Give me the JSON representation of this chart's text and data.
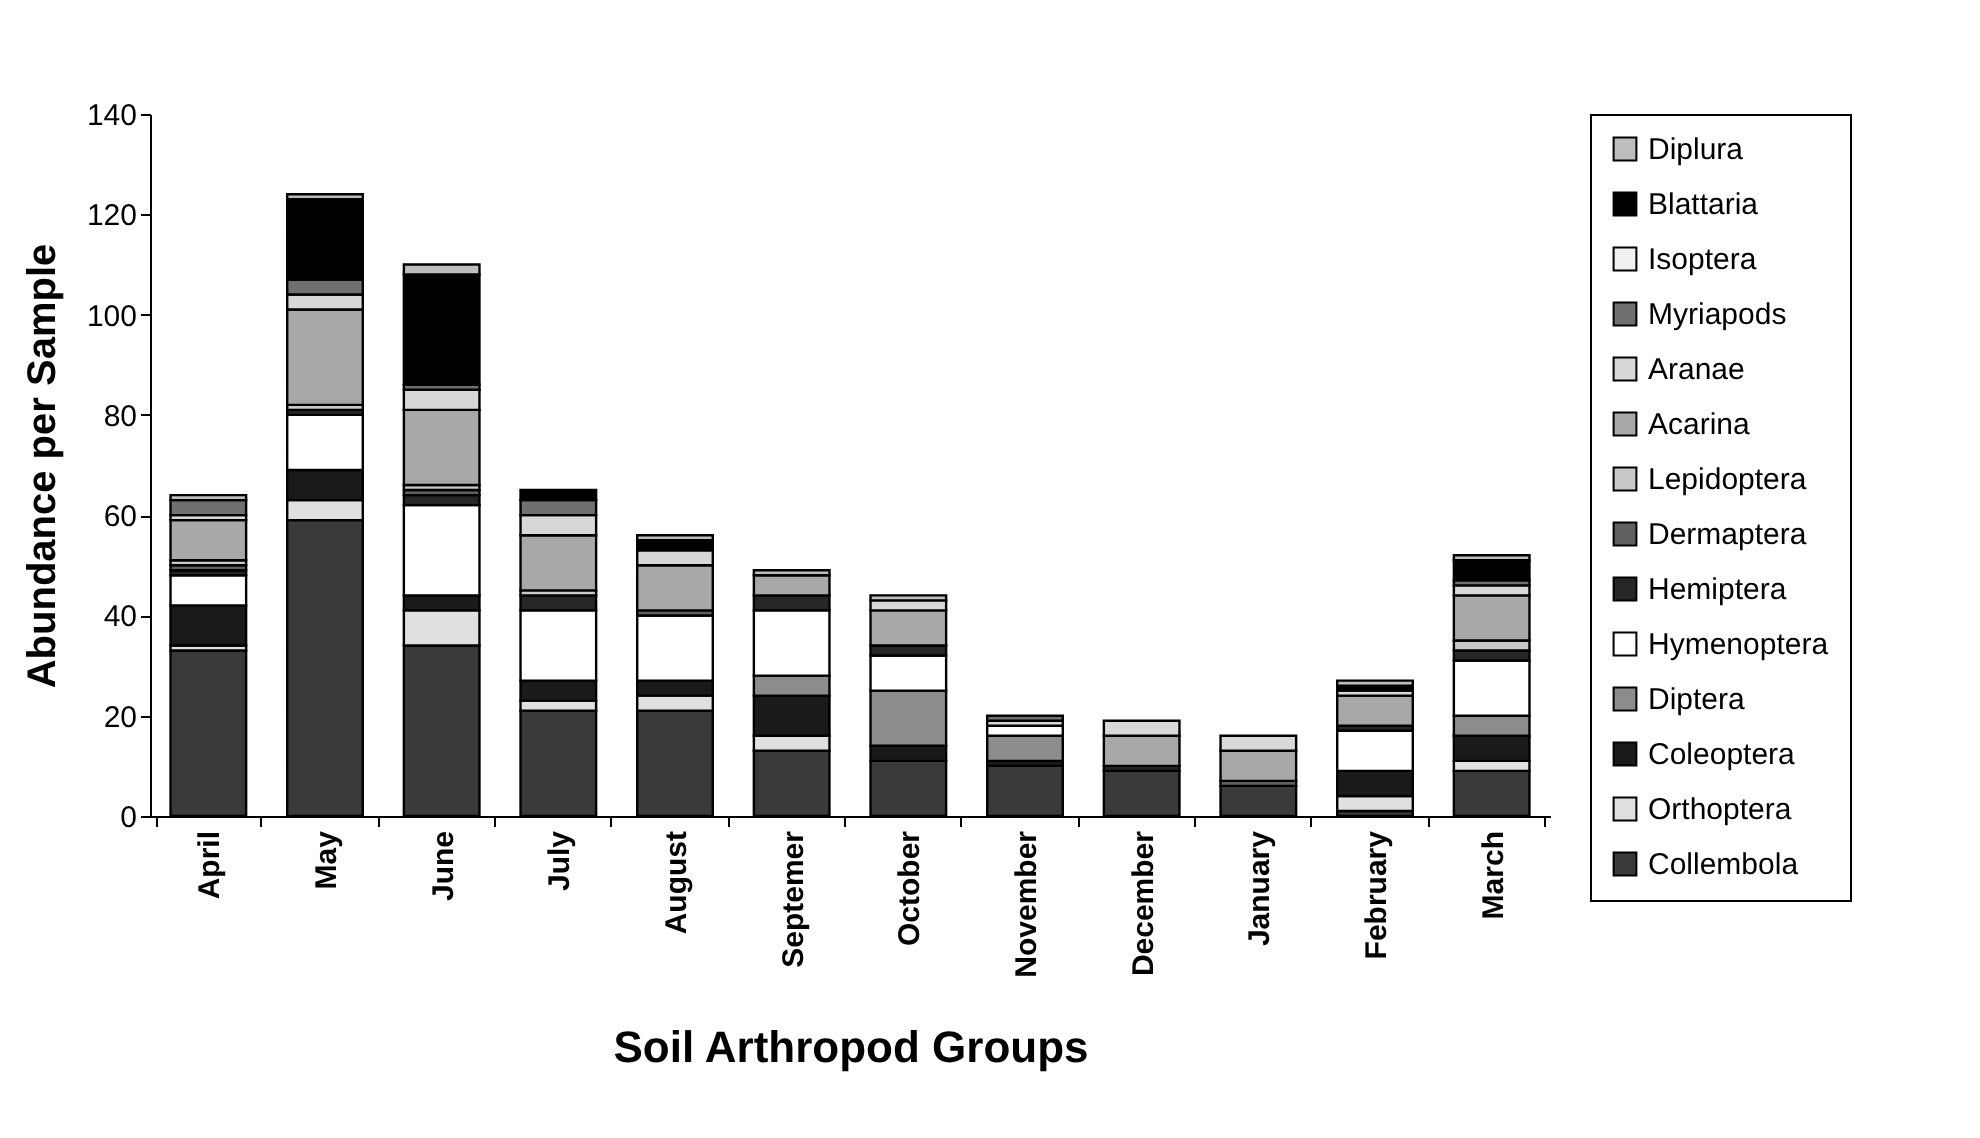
{
  "chart_data": {
    "type": "bar",
    "stacked": true,
    "xlabel": "Soil Arthropod Groups",
    "ylabel": "Abundance per Sample",
    "categories": [
      "April",
      "May",
      "June",
      "July",
      "August",
      "Septemer",
      "October",
      "November",
      "December",
      "January",
      "February",
      "March"
    ],
    "ylim": [
      0,
      140
    ],
    "yticks": [
      0,
      20,
      40,
      60,
      80,
      100,
      120,
      140
    ],
    "legend": "right",
    "grid": false,
    "series": [
      {
        "name": "Collembola",
        "color": "#3a3a3a",
        "values": [
          33,
          59,
          34,
          21,
          21,
          13,
          11,
          10,
          9,
          6,
          1,
          9
        ]
      },
      {
        "name": "Orthoptera",
        "color": "#e0e0e0",
        "values": [
          1,
          4,
          7,
          2,
          3,
          3,
          0,
          0,
          0,
          0,
          3,
          2
        ]
      },
      {
        "name": "Coleoptera",
        "color": "#1a1a1a",
        "values": [
          8,
          6,
          3,
          4,
          3,
          8,
          3,
          1,
          0,
          0,
          5,
          5
        ]
      },
      {
        "name": "Diptera",
        "color": "#8c8c8c",
        "values": [
          0,
          0,
          0,
          0,
          0,
          4,
          11,
          5,
          0,
          0,
          0,
          4
        ]
      },
      {
        "name": "Hymenoptera",
        "color": "#ffffff",
        "values": [
          6,
          11,
          18,
          14,
          13,
          13,
          7,
          2,
          0,
          0,
          8,
          11
        ]
      },
      {
        "name": "Hemiptera",
        "color": "#262626",
        "values": [
          1,
          1,
          2,
          3,
          0,
          3,
          2,
          0,
          1,
          0,
          1,
          2
        ]
      },
      {
        "name": "Dermaptera",
        "color": "#606060",
        "values": [
          1,
          0,
          1,
          0,
          1,
          0,
          0,
          0,
          0,
          1,
          0,
          0
        ]
      },
      {
        "name": "Lepidoptera",
        "color": "#c8c8c8",
        "values": [
          1,
          1,
          1,
          1,
          0,
          0,
          0,
          0,
          0,
          0,
          0,
          2
        ]
      },
      {
        "name": "Acarina",
        "color": "#a8a8a8",
        "values": [
          8,
          19,
          15,
          11,
          9,
          4,
          7,
          0,
          6,
          6,
          6,
          9
        ]
      },
      {
        "name": "Aranae",
        "color": "#d8d8d8",
        "values": [
          1,
          3,
          4,
          4,
          3,
          0,
          2,
          1,
          3,
          3,
          1,
          2
        ]
      },
      {
        "name": "Myriapods",
        "color": "#707070",
        "values": [
          3,
          3,
          1,
          3,
          0,
          0,
          0,
          1,
          0,
          0,
          0,
          1
        ]
      },
      {
        "name": "Isoptera",
        "color": "#f0f0f0",
        "values": [
          0,
          0,
          0,
          0,
          0,
          0,
          0,
          0,
          0,
          0,
          0,
          0
        ]
      },
      {
        "name": "Blattaria",
        "color": "#000000",
        "values": [
          0,
          16,
          22,
          2,
          2,
          0,
          0,
          0,
          0,
          0,
          1,
          4
        ]
      },
      {
        "name": "Diplura",
        "color": "#bdbdbd",
        "values": [
          1,
          1,
          2,
          0,
          1,
          1,
          1,
          0,
          0,
          0,
          1,
          1
        ]
      }
    ]
  }
}
